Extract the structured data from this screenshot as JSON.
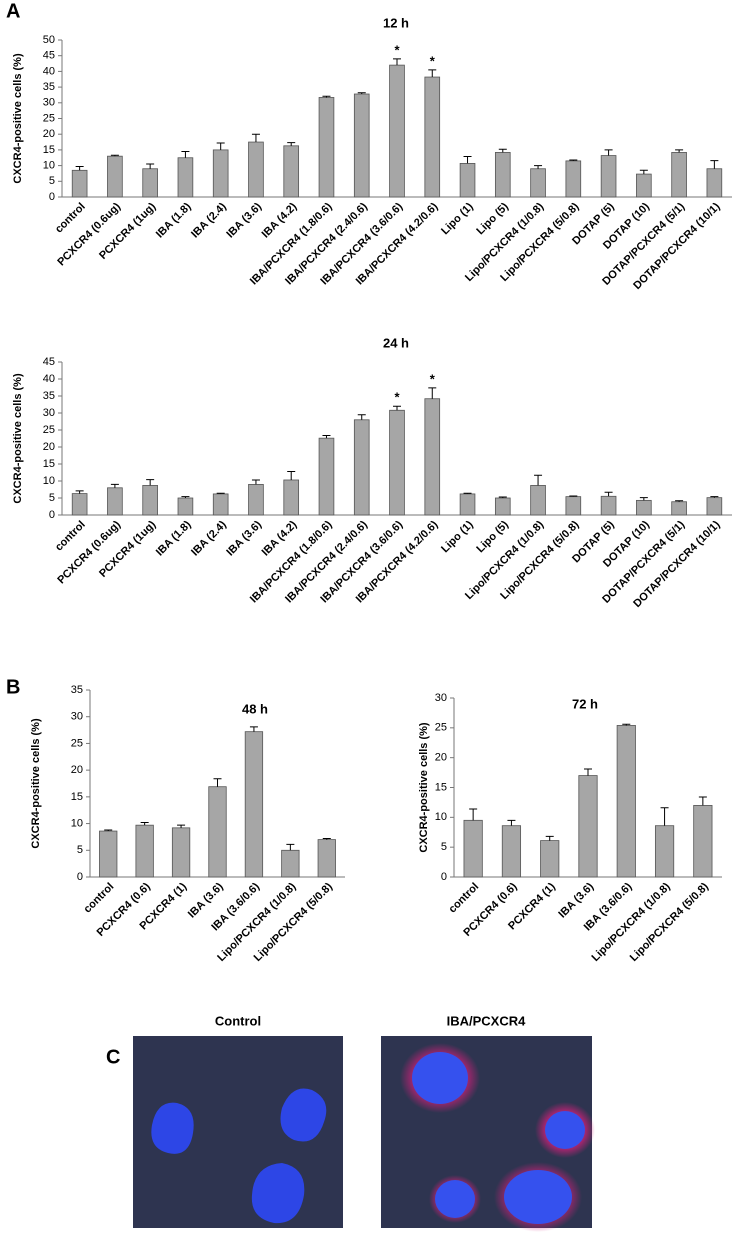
{
  "panel_labels": [
    "A",
    "B",
    "C"
  ],
  "images": [
    {
      "title": "Control"
    },
    {
      "title": "IBA/PCXCR4"
    }
  ],
  "chart_data": [
    {
      "type": "bar",
      "title": "12 h",
      "y_label": "CXCR4-positive cells (%)",
      "color": "#a6a6a6",
      "categories": [
        "control",
        "PCXCR4 (0.6ug)",
        "PCXCR4 (1ug)",
        "IBA (1.8)",
        "IBA (2.4)",
        "IBA (3.6)",
        "IBA (4.2)",
        "IBA/PCXCR4 (1.8/0.6)",
        "IBA/PCXCR4 (2.4/0.6)",
        "IBA/PCXCR4 (3.6/0.6)",
        "IBA/PCXCR4 (4.2/0.6)",
        "Lipo (1)",
        "Lipo (5)",
        "Lipo/PCXCR4 (1/0.8)",
        "Lipo/PCXCR4 (5/0.8)",
        "DOTAP (5)",
        "DOTAP (10)",
        "DOTAP/PCXCR4 (5/1)",
        "DOTAP/PCXCR4 (10/1)"
      ],
      "values": [
        8.5,
        13,
        9,
        12.5,
        15,
        17.5,
        16.3,
        31.7,
        32.8,
        42,
        38.2,
        10.7,
        14.2,
        9,
        11.5,
        13.2,
        7.3,
        14.2,
        9
      ],
      "errors": [
        1.2,
        0.3,
        1.5,
        2,
        2.2,
        2.5,
        1,
        0.4,
        0.4,
        2,
        2.3,
        2.2,
        1,
        1,
        0.3,
        1.8,
        1.2,
        0.8,
        2.6
      ],
      "annotations": [
        {
          "text": "*",
          "category_index": 9
        },
        {
          "text": "*",
          "category_index": 10
        }
      ],
      "ylim": [
        0,
        50
      ],
      "yticks": [
        0,
        5,
        10,
        15,
        20,
        25,
        30,
        35,
        40,
        45,
        50
      ]
    },
    {
      "type": "bar",
      "title": "24 h",
      "y_label": "CXCR4-positive cells (%)",
      "color": "#a6a6a6",
      "categories": [
        "control",
        "PCXCR4 (0.6ug)",
        "PCXCR4 (1ug)",
        "IBA (1.8)",
        "IBA (2.4)",
        "IBA (3.6)",
        "IBA (4.2)",
        "IBA/PCXCR4 (1.8/0.6)",
        "IBA/PCXCR4 (2.4/0.6)",
        "IBA/PCXCR4 (3.6/0.6)",
        "IBA/PCXCR4 (4.2/0.6)",
        "Lipo (1)",
        "Lipo (5)",
        "Lipo/PCXCR4 (1/0.8)",
        "Lipo/PCXCR4 (5/0.8)",
        "DOTAP (5)",
        "DOTAP (10)",
        "DOTAP/PCXCR4 (5/1)",
        "DOTAP/PCXCR4 (10/1)"
      ],
      "values": [
        6.3,
        8,
        8.7,
        5,
        6.2,
        9,
        10.3,
        22.6,
        28,
        30.8,
        34.2,
        6.2,
        5,
        8.7,
        5.4,
        5.5,
        4.3,
        3.9,
        5.1
      ],
      "errors": [
        0.8,
        1,
        1.7,
        0.4,
        0.2,
        1.3,
        2.5,
        0.8,
        1.5,
        1.2,
        3.2,
        0.2,
        0.3,
        3,
        0.2,
        1.2,
        0.8,
        0.3,
        0.3
      ],
      "annotations": [
        {
          "text": "*",
          "category_index": 9
        },
        {
          "text": "*",
          "category_index": 10
        }
      ],
      "ylim": [
        0,
        45
      ],
      "yticks": [
        0,
        5,
        10,
        15,
        20,
        25,
        30,
        35,
        40,
        45
      ]
    },
    {
      "type": "bar",
      "title": "48 h",
      "y_label": "CXCR4-positive cells (%)",
      "color": "#a6a6a6",
      "categories": [
        "control",
        "PCXCR4 (0.6)",
        "PCXCR4 (1)",
        "IBA (3.6)",
        "IBA (3.6/0.6)",
        "Lipo/PCXCR4 (1/0.8)",
        "Lipo/PCXCR4 (5/0.8)"
      ],
      "values": [
        8.6,
        9.7,
        9.2,
        16.9,
        27.2,
        5,
        7
      ],
      "errors": [
        0.2,
        0.5,
        0.5,
        1.5,
        0.9,
        1.1,
        0.2
      ],
      "ylim": [
        0,
        35
      ],
      "yticks": [
        0,
        5,
        10,
        15,
        20,
        25,
        30,
        35
      ]
    },
    {
      "type": "bar",
      "title": "72 h",
      "y_label": "CXCR4-positive cells (%)",
      "color": "#a6a6a6",
      "categories": [
        "control",
        "PCXCR4 (0.6)",
        "PCXCR4 (1)",
        "IBA (3.6)",
        "IBA (3.6/0.6)",
        "Lipo/PCXCR4 (1/0.8)",
        "Lipo/PCXCR4 (5/0.8)"
      ],
      "values": [
        9.5,
        8.6,
        6.1,
        17,
        25.4,
        8.6,
        12
      ],
      "errors": [
        1.9,
        0.9,
        0.7,
        1.1,
        0.2,
        3,
        1.4
      ],
      "ylim": [
        0,
        30
      ],
      "yticks": [
        0,
        5,
        10,
        15,
        20,
        25,
        30
      ]
    }
  ]
}
